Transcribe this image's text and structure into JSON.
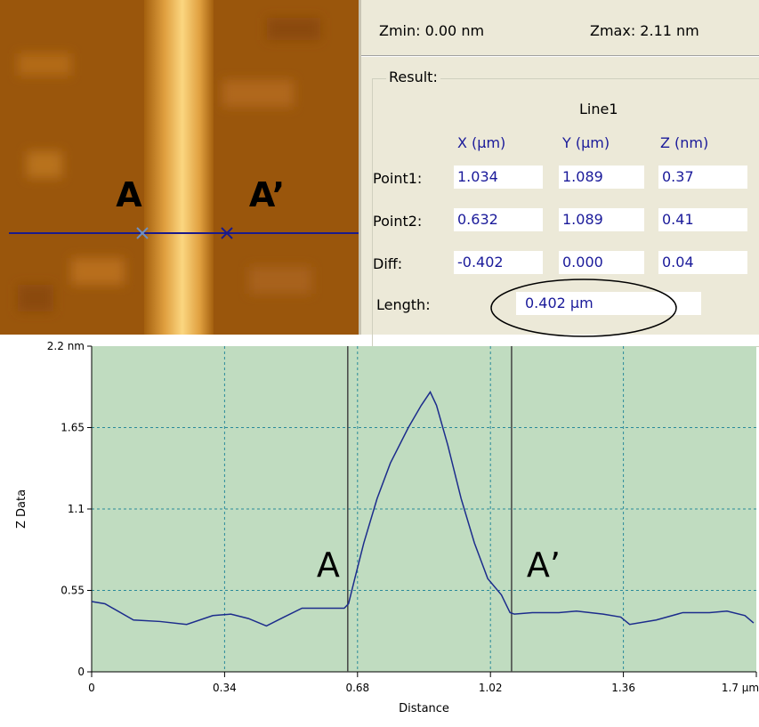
{
  "image": {
    "labels": [
      "A",
      "A’"
    ]
  },
  "panel": {
    "zmin": "Zmin:  0.00 nm",
    "zmax": "Zmax:  2.11 nm",
    "group": "Result:",
    "line_name": "Line1",
    "headers": [
      "X (µm)",
      "Y (µm)",
      "Z (nm)"
    ],
    "rows": [
      {
        "label": "Point1:",
        "cells": [
          "1.034",
          "1.089",
          "0.37"
        ]
      },
      {
        "label": "Point2:",
        "cells": [
          "0.632",
          "1.089",
          "0.41"
        ]
      },
      {
        "label": "Diff:",
        "cells": [
          "-0.402",
          "0.000",
          "0.04"
        ]
      }
    ],
    "length": {
      "label": "Length:",
      "value": "0.402 µm"
    }
  },
  "chart_data": {
    "type": "line",
    "x_label": "Distance",
    "y_label": "Z Data",
    "xlim": [
      0,
      1.7
    ],
    "ylim": [
      0,
      2.2
    ],
    "xticks": [
      0,
      0.34,
      0.68,
      1.02,
      1.36,
      {
        "value": 1.7,
        "label": "1.7 µm"
      }
    ],
    "yticks": [
      0,
      0.55,
      1.1,
      1.65,
      {
        "value": 2.2,
        "label": "2.2 nm"
      }
    ],
    "grid": true,
    "background": "#c0dcc0",
    "cursors": [
      0.655,
      1.074
    ],
    "annotations": [
      "A",
      "A’"
    ],
    "series": [
      {
        "color": "#1c2c8c",
        "x": [
          0,
          0.034,
          0.107,
          0.175,
          0.243,
          0.31,
          0.356,
          0.401,
          0.447,
          0.492,
          0.538,
          0.583,
          0.646,
          0.657,
          0.673,
          0.696,
          0.73,
          0.764,
          0.81,
          0.843,
          0.866,
          0.882,
          0.911,
          0.945,
          0.979,
          1.013,
          1.048,
          1.07,
          1.081,
          1.127,
          1.195,
          1.24,
          1.308,
          1.353,
          1.376,
          1.444,
          1.512,
          1.58,
          1.625,
          1.671,
          1.693
        ],
        "values": [
          0.475,
          0.46,
          0.35,
          0.34,
          0.32,
          0.38,
          0.39,
          0.36,
          0.31,
          0.37,
          0.43,
          0.43,
          0.43,
          0.46,
          0.63,
          0.87,
          1.17,
          1.41,
          1.65,
          1.8,
          1.89,
          1.8,
          1.53,
          1.17,
          0.87,
          0.63,
          0.52,
          0.4,
          0.39,
          0.4,
          0.4,
          0.41,
          0.39,
          0.37,
          0.32,
          0.35,
          0.4,
          0.4,
          0.41,
          0.38,
          0.33
        ]
      }
    ]
  }
}
